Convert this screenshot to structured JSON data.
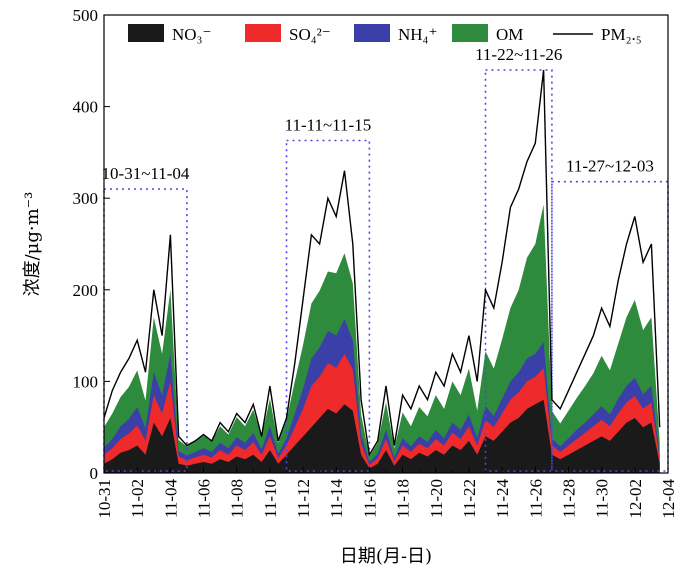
{
  "chart_data": {
    "type": "area",
    "title": "",
    "xlabel": "日期(月-日)",
    "ylabel": "浓度/μg·m⁻³",
    "ylim": [
      0,
      500
    ],
    "yticks": [
      0,
      100,
      200,
      300,
      400,
      500
    ],
    "x_start": "10-31",
    "x_end": "12-04",
    "xtick_labels": [
      "10-31",
      "11-02",
      "11-04",
      "11-06",
      "11-08",
      "11-10",
      "11-12",
      "11-14",
      "11-16",
      "11-18",
      "11-20",
      "11-22",
      "11-24",
      "11-26",
      "11-28",
      "11-30",
      "12-02",
      "12-04"
    ],
    "legend_position": "top",
    "series": [
      {
        "name": "NO₃⁻",
        "key": "no3",
        "color": "#1a1a1a",
        "kind": "stacked-area"
      },
      {
        "name": "SO₄²⁻",
        "key": "so4",
        "color": "#ee2a2a",
        "kind": "stacked-area"
      },
      {
        "name": "NH₄⁺",
        "key": "nh4",
        "color": "#3b3fa8",
        "kind": "stacked-area"
      },
      {
        "name": "OM",
        "key": "om",
        "color": "#2e8b3e",
        "kind": "stacked-area"
      },
      {
        "name": "PM₂.₅",
        "key": "pm",
        "color": "#000000",
        "kind": "line"
      }
    ],
    "periods": [
      {
        "label": "10-31~11-04",
        "start": "10-31",
        "end": "11-05",
        "top": 310
      },
      {
        "label": "11-11~11-15",
        "start": "11-11",
        "end": "11-16",
        "top": 363
      },
      {
        "label": "11-22~11-26",
        "start": "11-23",
        "end": "11-27",
        "top": 440
      },
      {
        "label": "11-27~12-03",
        "start": "11-27",
        "end": "12-04",
        "top": 318
      }
    ],
    "data": {
      "x": [
        "10-31",
        "10-31.5",
        "11-01",
        "11-01.5",
        "11-02",
        "11-02.5",
        "11-03",
        "11-03.5",
        "11-04",
        "11-04.5",
        "11-05",
        "11-05.5",
        "11-06",
        "11-06.5",
        "11-07",
        "11-07.5",
        "11-08",
        "11-08.5",
        "11-09",
        "11-09.5",
        "11-10",
        "11-10.5",
        "11-11",
        "11-11.5",
        "11-12",
        "11-12.5",
        "11-13",
        "11-13.5",
        "11-14",
        "11-14.5",
        "11-15",
        "11-15.5",
        "11-16",
        "11-16.5",
        "11-17",
        "11-17.5",
        "11-18",
        "11-18.5",
        "11-19",
        "11-19.5",
        "11-20",
        "11-20.5",
        "11-21",
        "11-21.5",
        "11-22",
        "11-22.5",
        "11-23",
        "11-23.5",
        "11-24",
        "11-24.5",
        "11-25",
        "11-25.5",
        "11-26",
        "11-26.5",
        "11-27",
        "11-27.5",
        "11-28",
        "11-28.5",
        "11-29",
        "11-29.5",
        "11-30",
        "11-30.5",
        "12-01",
        "12-01.5",
        "12-02",
        "12-02.5",
        "12-03",
        "12-03.5"
      ],
      "no3": [
        10,
        15,
        22,
        25,
        30,
        20,
        55,
        40,
        60,
        10,
        8,
        10,
        12,
        10,
        15,
        12,
        18,
        15,
        20,
        12,
        25,
        10,
        20,
        30,
        40,
        50,
        60,
        70,
        65,
        75,
        68,
        20,
        5,
        10,
        25,
        8,
        20,
        15,
        22,
        18,
        25,
        20,
        30,
        25,
        35,
        20,
        40,
        35,
        45,
        55,
        60,
        70,
        75,
        80,
        20,
        15,
        20,
        25,
        30,
        35,
        40,
        35,
        45,
        55,
        60,
        50,
        55,
        10
      ],
      "so4": [
        10,
        12,
        15,
        18,
        22,
        15,
        30,
        25,
        40,
        8,
        6,
        7,
        8,
        7,
        10,
        8,
        12,
        10,
        14,
        8,
        15,
        6,
        10,
        20,
        30,
        45,
        45,
        50,
        50,
        55,
        45,
        12,
        4,
        6,
        12,
        5,
        10,
        8,
        10,
        9,
        12,
        10,
        14,
        12,
        16,
        10,
        18,
        15,
        20,
        25,
        28,
        30,
        30,
        35,
        10,
        8,
        10,
        12,
        14,
        16,
        18,
        16,
        20,
        22,
        24,
        20,
        22,
        5
      ],
      "nh4": [
        8,
        10,
        14,
        16,
        20,
        14,
        25,
        20,
        30,
        6,
        5,
        6,
        7,
        6,
        8,
        7,
        9,
        8,
        10,
        6,
        11,
        5,
        8,
        15,
        22,
        30,
        32,
        35,
        35,
        38,
        32,
        10,
        3,
        5,
        10,
        4,
        8,
        6,
        8,
        7,
        10,
        8,
        11,
        10,
        13,
        8,
        15,
        12,
        16,
        20,
        22,
        25,
        25,
        28,
        8,
        6,
        8,
        10,
        11,
        13,
        15,
        13,
        16,
        18,
        20,
        16,
        18,
        4
      ],
      "om": [
        22,
        28,
        32,
        35,
        40,
        30,
        60,
        45,
        70,
        12,
        10,
        12,
        14,
        12,
        18,
        15,
        22,
        18,
        25,
        14,
        30,
        12,
        20,
        35,
        48,
        60,
        62,
        65,
        68,
        72,
        62,
        22,
        6,
        12,
        30,
        10,
        28,
        22,
        32,
        28,
        38,
        32,
        45,
        38,
        50,
        30,
        60,
        52,
        65,
        80,
        90,
        110,
        120,
        150,
        30,
        25,
        30,
        35,
        40,
        45,
        55,
        48,
        60,
        75,
        85,
        70,
        75,
        15
      ],
      "pm": [
        60,
        90,
        110,
        125,
        145,
        110,
        200,
        150,
        260,
        40,
        30,
        35,
        42,
        35,
        55,
        45,
        65,
        55,
        75,
        40,
        95,
        35,
        60,
        120,
        190,
        260,
        250,
        300,
        280,
        330,
        250,
        80,
        20,
        35,
        95,
        30,
        85,
        70,
        95,
        80,
        110,
        95,
        130,
        110,
        150,
        100,
        200,
        180,
        230,
        290,
        310,
        340,
        360,
        440,
        80,
        70,
        90,
        110,
        130,
        150,
        180,
        160,
        210,
        250,
        280,
        230,
        250,
        50
      ]
    }
  }
}
